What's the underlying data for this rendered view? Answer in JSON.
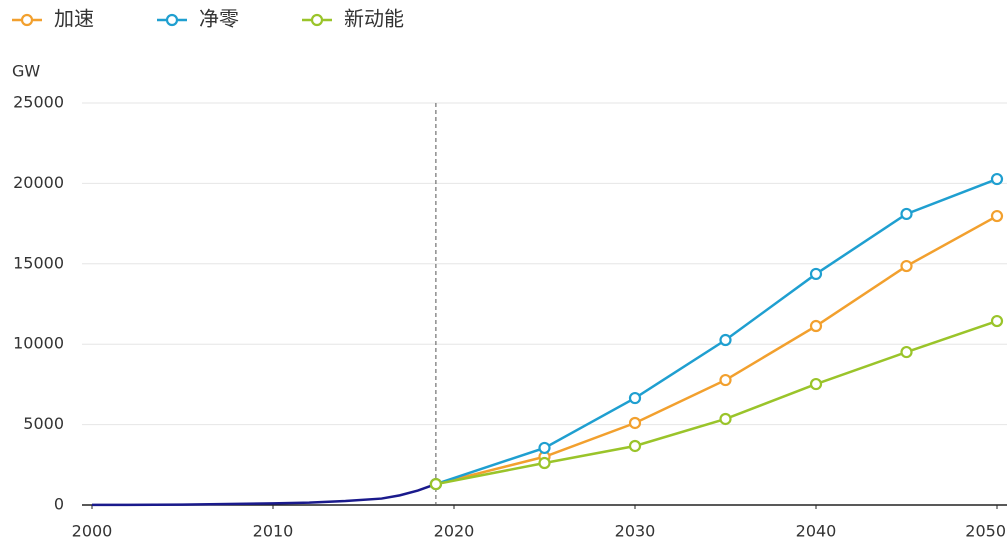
{
  "chart_data": {
    "type": "line",
    "y_label": "GW",
    "xlim": [
      2000,
      2050
    ],
    "xticks": [
      2000,
      2010,
      2020,
      2030,
      2040,
      2050
    ],
    "ylim": [
      0,
      25000
    ],
    "yticks": [
      0,
      5000,
      10000,
      15000,
      20000,
      25000
    ],
    "grid": true,
    "legend": "top-left",
    "divider_x": 2019,
    "history": {
      "color": "#1a1a8c",
      "x": [
        2000,
        2005,
        2010,
        2012,
        2014,
        2016,
        2017,
        2018,
        2019
      ],
      "values": [
        5,
        20,
        100,
        150,
        250,
        400,
        600,
        900,
        1300
      ]
    },
    "x": [
      2019,
      2025,
      2030,
      2035,
      2040,
      2045,
      2050
    ],
    "series": [
      {
        "name": "加速",
        "color": "#f2a02e",
        "values": [
          1300,
          3000,
          5100,
          7770,
          11130,
          14860,
          17970
        ]
      },
      {
        "name": "净零",
        "color": "#1f9fd0",
        "values": [
          1300,
          3550,
          6650,
          10260,
          14370,
          18100,
          20270
        ]
      },
      {
        "name": "新动能",
        "color": "#9ac42a",
        "values": [
          1300,
          2610,
          3670,
          5350,
          7520,
          9510,
          11440
        ]
      }
    ]
  }
}
